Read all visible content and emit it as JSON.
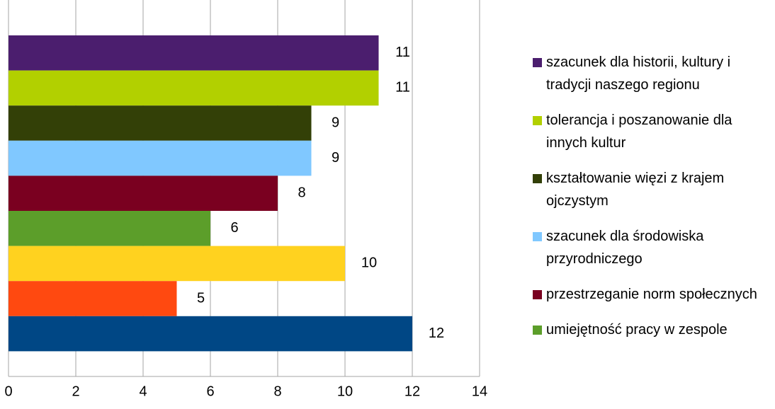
{
  "chart_data": {
    "type": "bar",
    "orientation": "horizontal",
    "categories": [
      "szacunek dla historii, kultury i tradycji naszego regionu",
      "tolerancja i poszanowanie dla innych kultur",
      "kształtowanie więzi z krajem ojczystym",
      "szacunek dla środowiska przyrodniczego",
      "przestrzeganie norm społecznych",
      "umiejętność pracy w zespole",
      null,
      null,
      null
    ],
    "values": [
      11,
      11,
      9,
      9,
      8,
      6,
      10,
      5,
      12
    ],
    "colors": [
      "#4b1e6e",
      "#b2d000",
      "#334007",
      "#80c8ff",
      "#7a0020",
      "#5c9e2a",
      "#ffd21f",
      "#ff4910",
      "#004785"
    ],
    "xlim": [
      0,
      14
    ],
    "xticks": [
      0,
      2,
      4,
      6,
      8,
      10,
      12,
      14
    ],
    "grid": true,
    "legend": "right"
  }
}
